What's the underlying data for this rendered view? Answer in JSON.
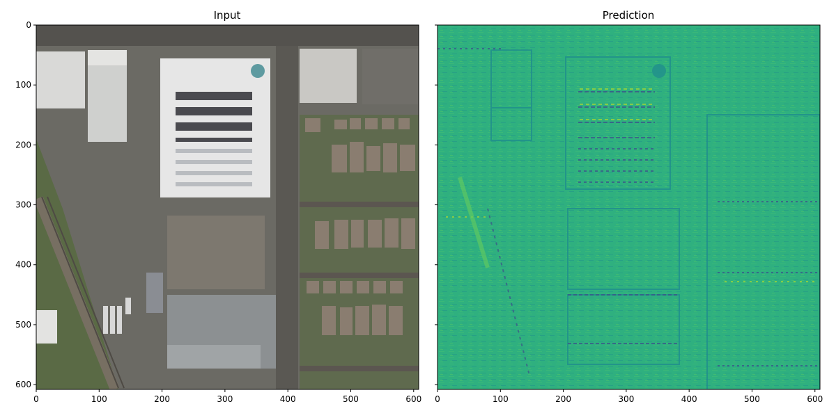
{
  "figure": {
    "panels": [
      {
        "title": "Input",
        "image": "aerial-satellite-photo",
        "x_ticks": [
          "0",
          "100",
          "200",
          "300",
          "400",
          "500",
          "600"
        ],
        "y_ticks": [
          "0",
          "100",
          "200",
          "300",
          "400",
          "500",
          "600"
        ]
      },
      {
        "title": "Prediction",
        "image": "heatmap-prediction",
        "x_ticks": [
          "0",
          "100",
          "200",
          "300",
          "400",
          "500",
          "600"
        ],
        "y_ticks": [
          "",
          "",
          "",
          "",
          "",
          "",
          ""
        ]
      }
    ]
  },
  "chart_data": [
    {
      "type": "heatmap",
      "title": "Input",
      "xlim": [
        0,
        608
      ],
      "ylim": [
        608,
        0
      ],
      "x_ticks": [
        0,
        100,
        200,
        300,
        400,
        500,
        600
      ],
      "y_ticks": [
        0,
        100,
        200,
        300,
        400,
        500,
        600
      ],
      "image_kind": "rgb aerial photograph"
    },
    {
      "type": "heatmap",
      "title": "Prediction",
      "xlim": [
        0,
        608
      ],
      "ylim": [
        608,
        0
      ],
      "x_ticks": [
        0,
        100,
        200,
        300,
        400,
        500,
        600
      ],
      "y_ticks": [
        0,
        100,
        200,
        300,
        400,
        500,
        600
      ],
      "image_kind": "single-channel prediction map",
      "colormap": "viridis",
      "colors": {
        "base": "#2db27d",
        "light": "#5ec962",
        "dark": "#21918c",
        "deep": "#3b528b",
        "hi": "#b5de2b"
      }
    }
  ]
}
